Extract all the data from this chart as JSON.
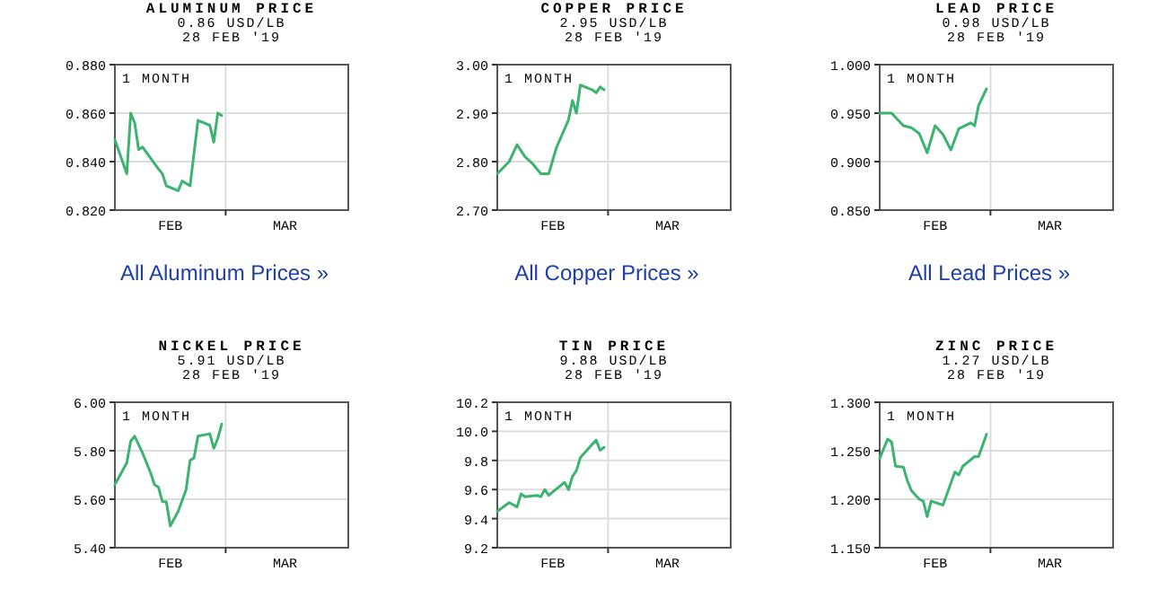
{
  "chart_data": [
    {
      "type": "line",
      "title": "ALUMINUM PRICE",
      "subtitle": "0.86 USD/LB",
      "annotations": [
        "28 FEB '19",
        "1 MONTH",
        "All Aluminum Prices »"
      ],
      "color": "#3cb371",
      "grid": true,
      "x": [
        "2019-02-01",
        "2019-02-04",
        "2019-02-05",
        "2019-02-06",
        "2019-02-07",
        "2019-02-08",
        "2019-02-12",
        "2019-02-13",
        "2019-02-14",
        "2019-02-17",
        "2019-02-18",
        "2019-02-20",
        "2019-02-22",
        "2019-02-25",
        "2019-02-26",
        "2019-02-27",
        "2019-02-28"
      ],
      "values": [
        0.849,
        0.835,
        0.86,
        0.856,
        0.845,
        0.846,
        0.837,
        0.835,
        0.83,
        0.828,
        0.832,
        0.83,
        0.857,
        0.855,
        0.848,
        0.86,
        0.859
      ],
      "xlim": [
        "2019-02-01",
        "2019-04-01"
      ],
      "xticks": [
        {
          "value": "2019-02-15",
          "label": "FEB"
        },
        {
          "value": "2019-03-01",
          "label": null
        },
        {
          "value": "2019-03-16",
          "label": "MAR"
        }
      ],
      "ylim": [
        0.82,
        0.88
      ],
      "yticks": [
        {
          "value": 0.82,
          "label": "0.820"
        },
        {
          "value": 0.84,
          "label": "0.840"
        },
        {
          "value": 0.86,
          "label": "0.860"
        },
        {
          "value": 0.88,
          "label": "0.880"
        }
      ]
    },
    {
      "type": "line",
      "title": "COPPER PRICE",
      "subtitle": "2.95 USD/LB",
      "annotations": [
        "28 FEB '19",
        "1 MONTH",
        "All Copper Prices »"
      ],
      "color": "#3cb371",
      "grid": true,
      "x": [
        "2019-02-01",
        "2019-02-04",
        "2019-02-06",
        "2019-02-08",
        "2019-02-10",
        "2019-02-12",
        "2019-02-14",
        "2019-02-16",
        "2019-02-19",
        "2019-02-20",
        "2019-02-21",
        "2019-02-22",
        "2019-02-25",
        "2019-02-26",
        "2019-02-27",
        "2019-02-28"
      ],
      "values": [
        2.775,
        2.8,
        2.835,
        2.81,
        2.795,
        2.775,
        2.775,
        2.83,
        2.886,
        2.926,
        2.9,
        2.958,
        2.948,
        2.942,
        2.954,
        2.948
      ],
      "xlim": [
        "2019-02-01",
        "2019-04-01"
      ],
      "xticks": [
        {
          "value": "2019-02-15",
          "label": "FEB"
        },
        {
          "value": "2019-03-01",
          "label": null
        },
        {
          "value": "2019-03-16",
          "label": "MAR"
        }
      ],
      "ylim": [
        2.7,
        3.0
      ],
      "yticks": [
        {
          "value": 2.7,
          "label": "2.70"
        },
        {
          "value": 2.8,
          "label": "2.80"
        },
        {
          "value": 2.9,
          "label": "2.90"
        },
        {
          "value": 3.0,
          "label": "3.00"
        }
      ]
    },
    {
      "type": "line",
      "title": "LEAD PRICE",
      "subtitle": "0.98 USD/LB",
      "annotations": [
        "28 FEB '19",
        "1 MONTH",
        "All Lead Prices »"
      ],
      "color": "#3cb371",
      "grid": true,
      "x": [
        "2019-02-01",
        "2019-02-04",
        "2019-02-07",
        "2019-02-09",
        "2019-02-11",
        "2019-02-13",
        "2019-02-15",
        "2019-02-17",
        "2019-02-19",
        "2019-02-21",
        "2019-02-24",
        "2019-02-25",
        "2019-02-26",
        "2019-02-28"
      ],
      "values": [
        0.95,
        0.95,
        0.937,
        0.935,
        0.929,
        0.909,
        0.937,
        0.928,
        0.912,
        0.934,
        0.94,
        0.937,
        0.958,
        0.975
      ],
      "xlim": [
        "2019-02-01",
        "2019-04-01"
      ],
      "xticks": [
        {
          "value": "2019-02-15",
          "label": "FEB"
        },
        {
          "value": "2019-03-01",
          "label": null
        },
        {
          "value": "2019-03-16",
          "label": "MAR"
        }
      ],
      "ylim": [
        0.85,
        1.0
      ],
      "yticks": [
        {
          "value": 0.85,
          "label": "0.850"
        },
        {
          "value": 0.9,
          "label": "0.900"
        },
        {
          "value": 0.95,
          "label": "0.950"
        },
        {
          "value": 1.0,
          "label": "1.000"
        }
      ]
    },
    {
      "type": "line",
      "title": "NICKEL PRICE",
      "subtitle": "5.91 USD/LB",
      "annotations": [
        "28 FEB '19",
        "1 MONTH"
      ],
      "color": "#3cb371",
      "grid": true,
      "x": [
        "2019-02-01",
        "2019-02-04",
        "2019-02-05",
        "2019-02-06",
        "2019-02-08",
        "2019-02-10",
        "2019-02-11",
        "2019-02-12",
        "2019-02-13",
        "2019-02-14",
        "2019-02-15",
        "2019-02-17",
        "2019-02-19",
        "2019-02-20",
        "2019-02-21",
        "2019-02-22",
        "2019-02-25",
        "2019-02-26",
        "2019-02-27",
        "2019-02-28"
      ],
      "values": [
        5.66,
        5.75,
        5.84,
        5.86,
        5.79,
        5.71,
        5.66,
        5.65,
        5.59,
        5.59,
        5.49,
        5.55,
        5.64,
        5.76,
        5.77,
        5.86,
        5.87,
        5.81,
        5.85,
        5.91
      ],
      "xlim": [
        "2019-02-01",
        "2019-04-01"
      ],
      "xticks": [
        {
          "value": "2019-02-15",
          "label": "FEB"
        },
        {
          "value": "2019-03-01",
          "label": null
        },
        {
          "value": "2019-03-16",
          "label": "MAR"
        }
      ],
      "ylim": [
        5.4,
        6.0
      ],
      "yticks": [
        {
          "value": 5.4,
          "label": "5.40"
        },
        {
          "value": 5.6,
          "label": "5.60"
        },
        {
          "value": 5.8,
          "label": "5.80"
        },
        {
          "value": 6.0,
          "label": "6.00"
        }
      ]
    },
    {
      "type": "line",
      "title": "TIN PRICE",
      "subtitle": "9.88 USD/LB",
      "annotations": [
        "28 FEB '19",
        "1 MONTH"
      ],
      "color": "#3cb371",
      "grid": true,
      "x": [
        "2019-02-01",
        "2019-02-04",
        "2019-02-06",
        "2019-02-07",
        "2019-02-08",
        "2019-02-11",
        "2019-02-12",
        "2019-02-13",
        "2019-02-14",
        "2019-02-18",
        "2019-02-19",
        "2019-02-20",
        "2019-02-21",
        "2019-02-22",
        "2019-02-24",
        "2019-02-26",
        "2019-02-27",
        "2019-02-28"
      ],
      "values": [
        9.45,
        9.51,
        9.48,
        9.57,
        9.55,
        9.56,
        9.55,
        9.6,
        9.56,
        9.65,
        9.6,
        9.69,
        9.73,
        9.82,
        9.88,
        9.94,
        9.87,
        9.89
      ],
      "xlim": [
        "2019-02-01",
        "2019-04-01"
      ],
      "xticks": [
        {
          "value": "2019-02-15",
          "label": "FEB"
        },
        {
          "value": "2019-03-01",
          "label": null
        },
        {
          "value": "2019-03-16",
          "label": "MAR"
        }
      ],
      "ylim": [
        9.2,
        10.2
      ],
      "yticks": [
        9.2,
        9.4,
        9.6,
        9.8,
        {
          "value": 10,
          "label": "10.0"
        },
        10.2
      ]
    },
    {
      "type": "line",
      "title": "ZINC PRICE",
      "subtitle": "1.27 USD/LB",
      "annotations": [
        "28 FEB '19",
        "1 MONTH"
      ],
      "color": "#3cb371",
      "grid": true,
      "x": [
        "2019-02-01",
        "2019-02-03",
        "2019-02-04",
        "2019-02-05",
        "2019-02-07",
        "2019-02-08",
        "2019-02-09",
        "2019-02-11",
        "2019-02-12",
        "2019-02-13",
        "2019-02-14",
        "2019-02-17",
        "2019-02-20",
        "2019-02-21",
        "2019-02-22",
        "2019-02-25",
        "2019-02-26",
        "2019-02-28"
      ],
      "values": [
        1.242,
        1.262,
        1.259,
        1.234,
        1.233,
        1.219,
        1.209,
        1.2,
        1.198,
        1.182,
        1.198,
        1.194,
        1.228,
        1.225,
        1.234,
        1.244,
        1.244,
        1.267
      ],
      "xlim": [
        "2019-02-01",
        "2019-04-01"
      ],
      "xticks": [
        {
          "value": "2019-02-15",
          "label": "FEB"
        },
        {
          "value": "2019-03-01",
          "label": null
        },
        {
          "value": "2019-03-16",
          "label": "MAR"
        }
      ],
      "ylim": [
        1.15,
        1.3
      ],
      "yticks": [
        {
          "value": 1.15,
          "label": "1.150"
        },
        {
          "value": 1.2,
          "label": "1.200"
        },
        {
          "value": 1.25,
          "label": "1.250"
        },
        {
          "value": 1.3,
          "label": "1.300"
        }
      ]
    }
  ]
}
